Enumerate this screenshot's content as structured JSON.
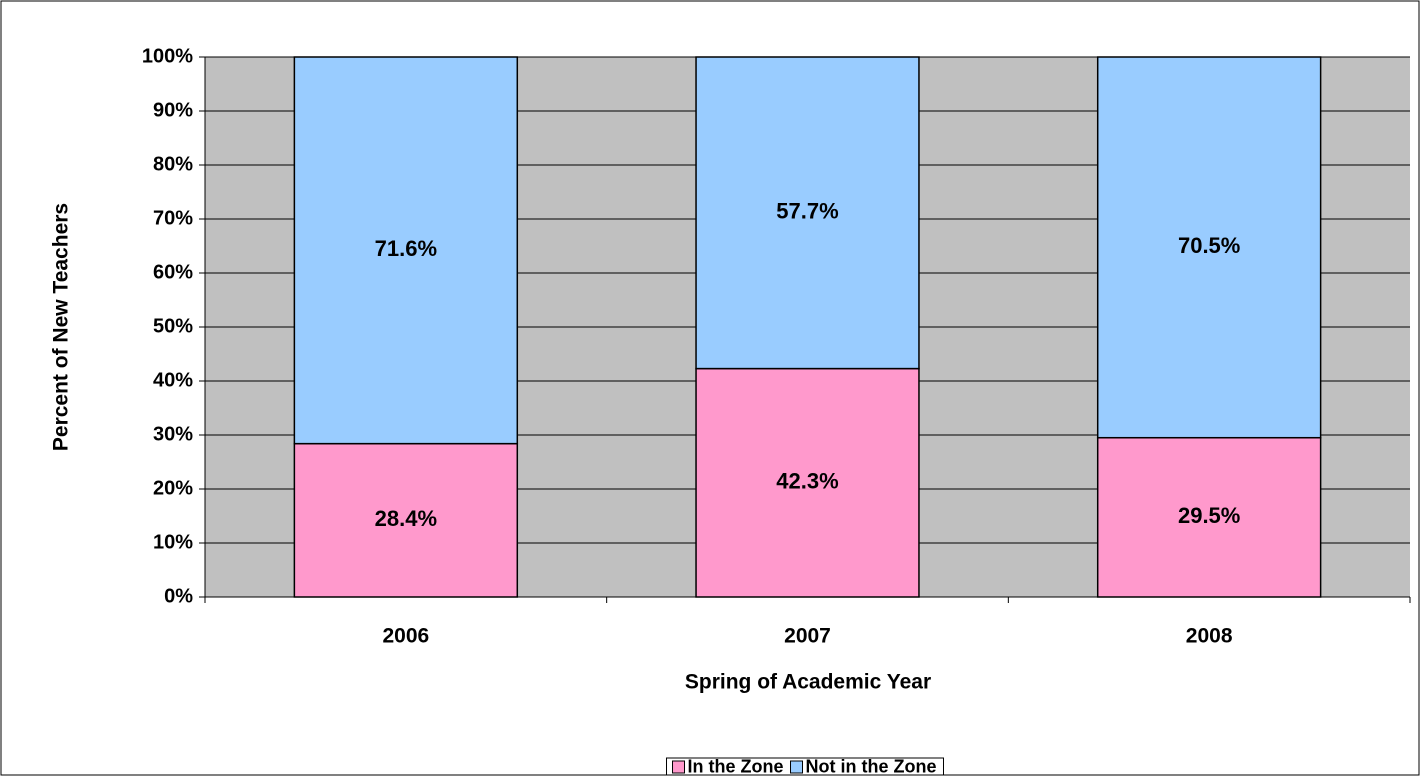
{
  "chart_data": {
    "type": "bar",
    "stacked": true,
    "x_label": "Spring of Academic Year",
    "y_label": "Percent of New Teachers",
    "categories": [
      "2006",
      "2007",
      "2008"
    ],
    "series": [
      {
        "name": "In the Zone",
        "color": "#ff99cc",
        "values": [
          28.4,
          42.3,
          29.5
        ],
        "value_labels": [
          "28.4%",
          "42.3%",
          "29.5%"
        ]
      },
      {
        "name": "Not in the Zone",
        "color": "#99ccff",
        "values": [
          71.6,
          57.7,
          70.5
        ],
        "value_labels": [
          "71.6%",
          "57.7%",
          "70.5%"
        ]
      }
    ],
    "ylim": [
      0,
      100
    ],
    "yticks": [
      {
        "value": 0,
        "label": "0%"
      },
      {
        "value": 10,
        "label": "10%"
      },
      {
        "value": 20,
        "label": "20%"
      },
      {
        "value": 30,
        "label": "30%"
      },
      {
        "value": 40,
        "label": "40%"
      },
      {
        "value": 50,
        "label": "50%"
      },
      {
        "value": 60,
        "label": "60%"
      },
      {
        "value": 70,
        "label": "70%"
      },
      {
        "value": 80,
        "label": "80%"
      },
      {
        "value": 90,
        "label": "90%"
      },
      {
        "value": 100,
        "label": "100%"
      }
    ],
    "grid": true,
    "plot_background": "#c0c0c0",
    "legend": "bottom"
  }
}
